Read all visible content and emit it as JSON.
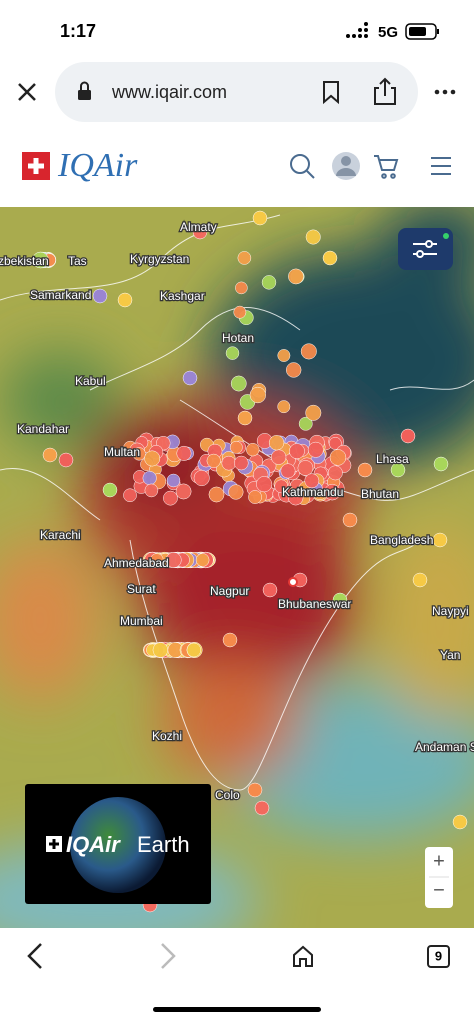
{
  "status_bar": {
    "time": "1:17",
    "network": "5G"
  },
  "browser": {
    "url": "www.iqair.com",
    "tab_count": "9"
  },
  "header": {
    "logo": "IQAir"
  },
  "map": {
    "labels": [
      "zbekistan",
      "Tas",
      "Almaty",
      "Kyrgyzstan",
      "Samarkand",
      "Kashgar",
      "Hotan",
      "Kabul",
      "Kandahar",
      "Multan",
      "Karachi",
      "Ahmedabad",
      "Surat",
      "Mumbai",
      "Nagpur",
      "Bhubaneswar",
      "Kathmandu",
      "Lhasa",
      "Bhutan",
      "Bangladesh",
      "Naypyi",
      "Yan",
      "Kozhi",
      "Colo",
      "Andaman Sea"
    ]
  },
  "earth_promo": {
    "brand": "IQAir",
    "label": "Earth"
  },
  "zoom": {
    "in": "+",
    "out": "−"
  }
}
